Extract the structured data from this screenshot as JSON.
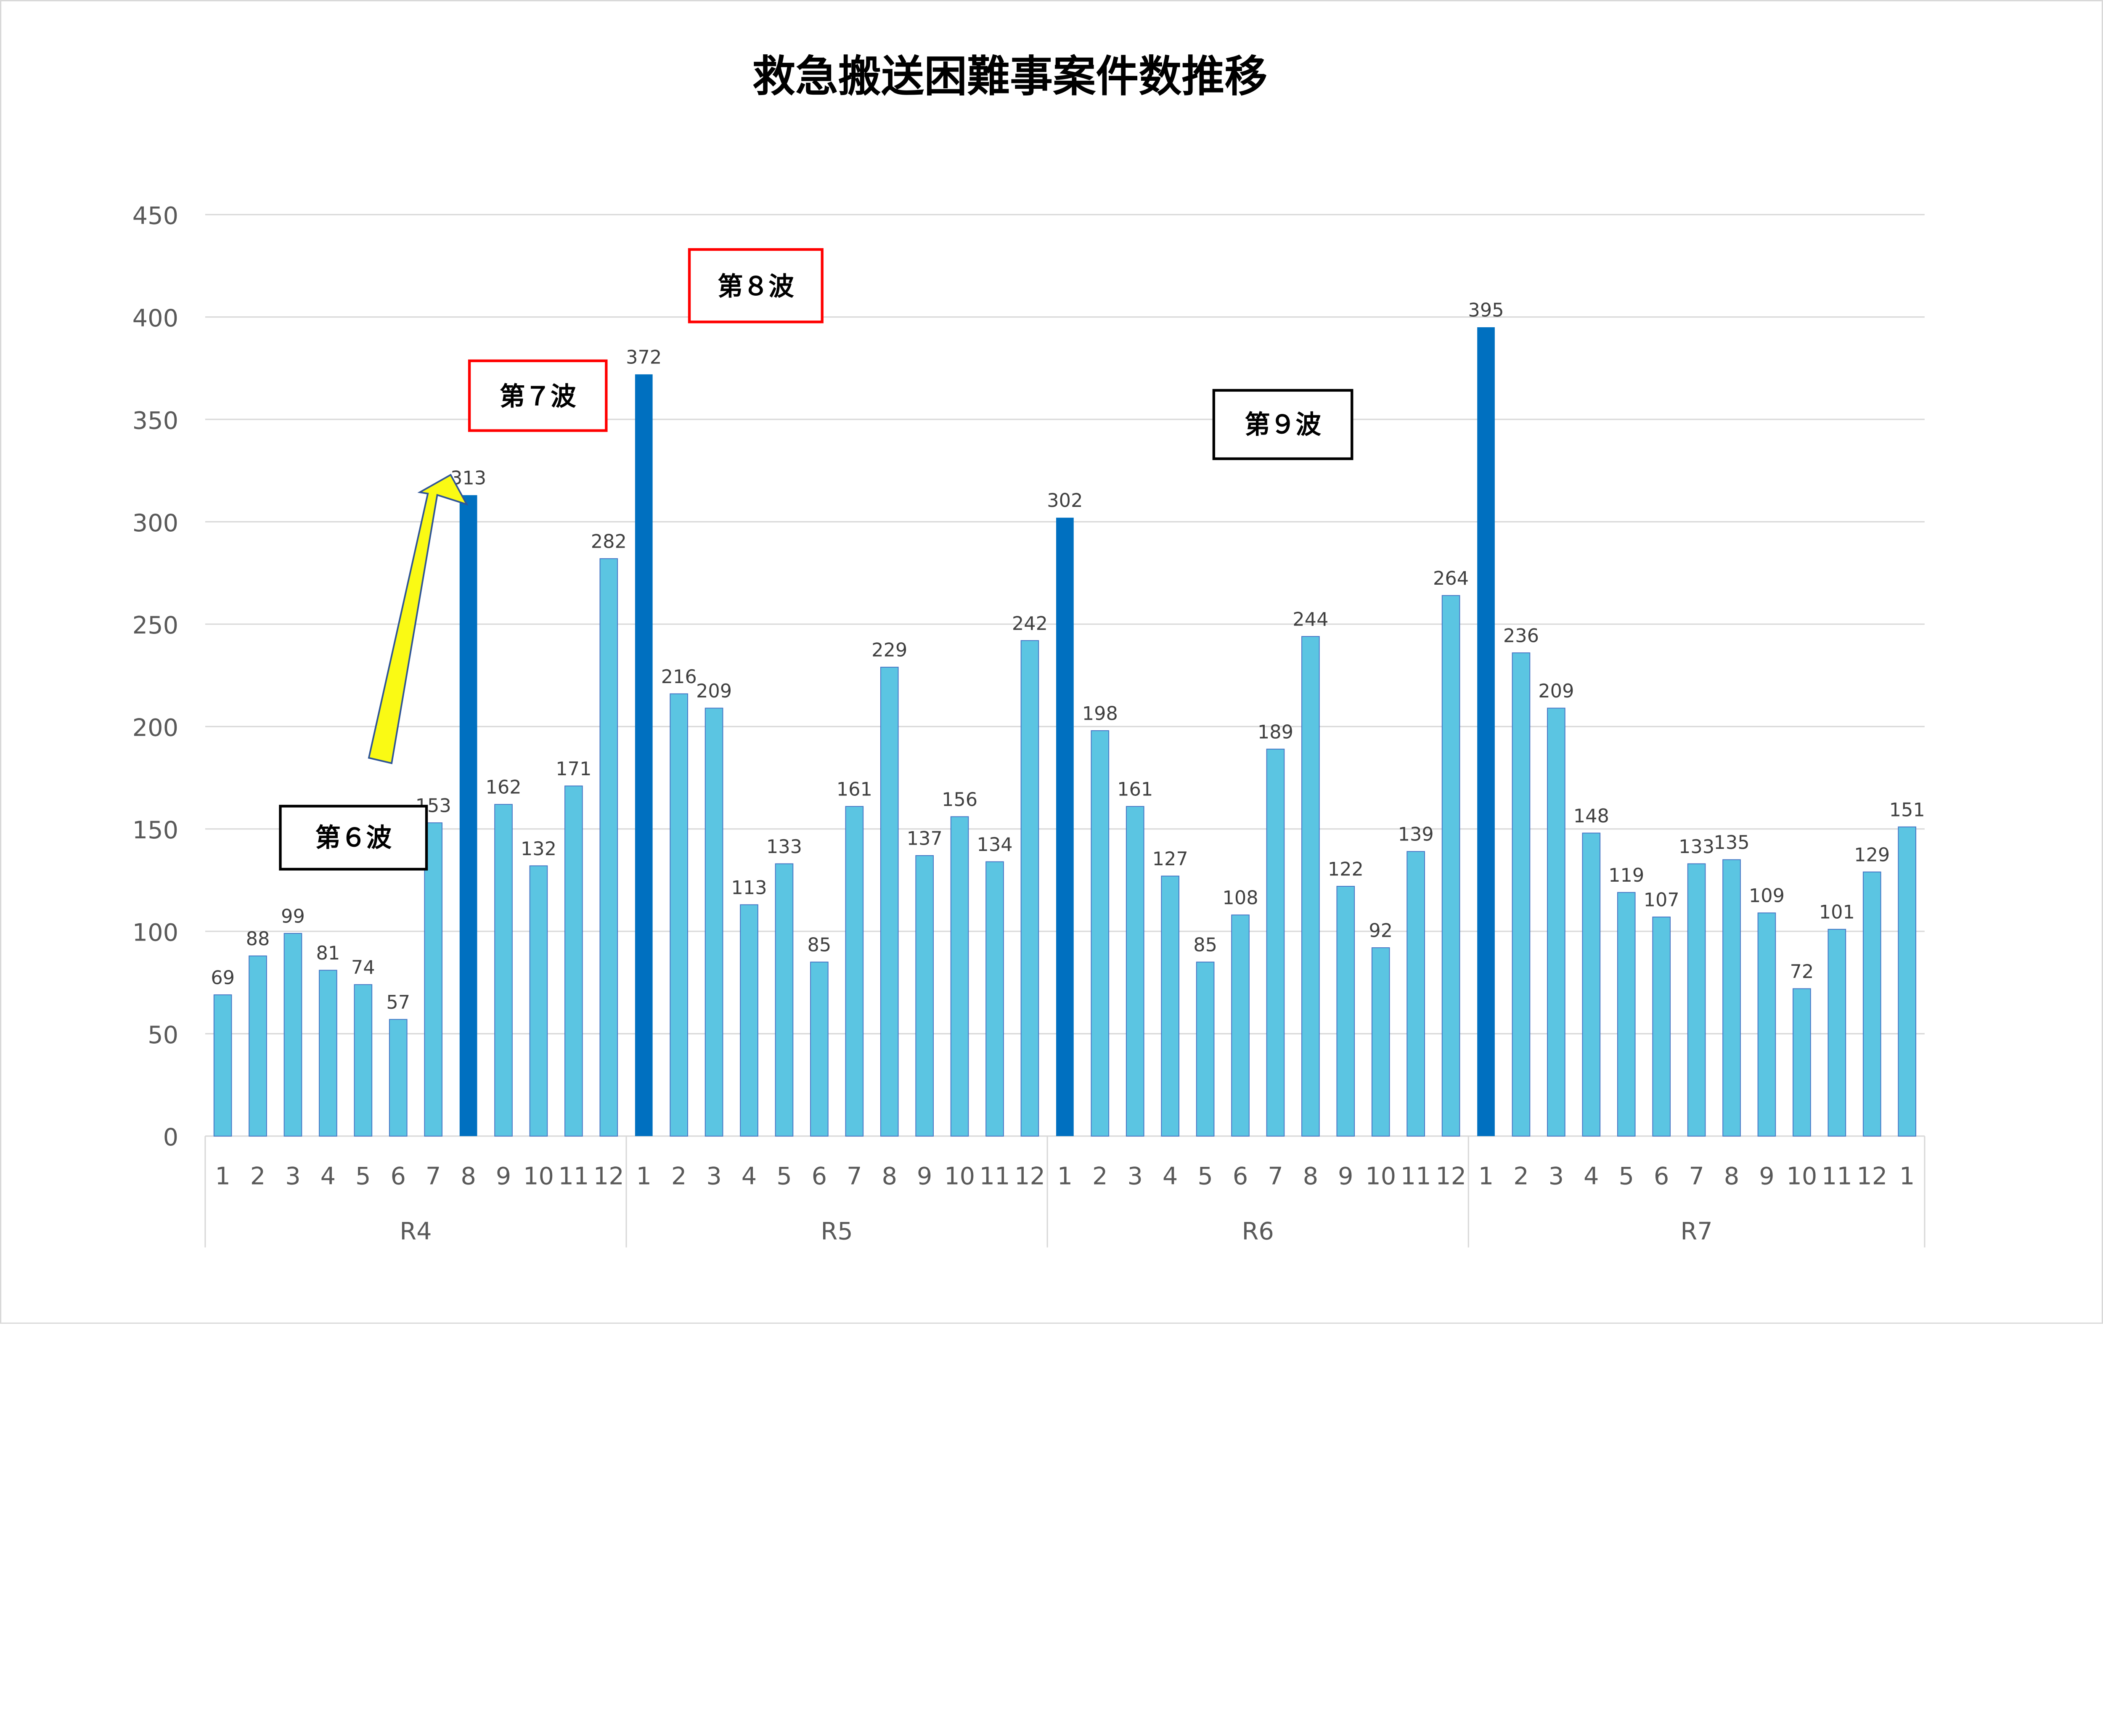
{
  "chart_data": {
    "type": "bar",
    "title": "救急搬送困難事案件数推移",
    "xlabel": "",
    "ylabel": "",
    "ylim": [
      0,
      450
    ],
    "yticks": [
      0,
      50,
      100,
      150,
      200,
      250,
      300,
      350,
      400,
      450
    ],
    "grid": true,
    "legend": "none",
    "groups": [
      {
        "label": "R4",
        "months": [
          "1",
          "2",
          "3",
          "4",
          "5",
          "6",
          "7",
          "8",
          "9",
          "10",
          "11",
          "12"
        ],
        "values": [
          69,
          88,
          99,
          81,
          74,
          57,
          153,
          313,
          162,
          132,
          171,
          282
        ]
      },
      {
        "label": "R5",
        "months": [
          "1",
          "2",
          "3",
          "4",
          "5",
          "6",
          "7",
          "8",
          "9",
          "10",
          "11",
          "12"
        ],
        "values": [
          372,
          216,
          209,
          113,
          133,
          85,
          161,
          229,
          137,
          156,
          134,
          242
        ]
      },
      {
        "label": "R6",
        "months": [
          "1",
          "2",
          "3",
          "4",
          "5",
          "6",
          "7",
          "8",
          "9",
          "10",
          "11",
          "12"
        ],
        "values": [
          302,
          198,
          161,
          127,
          85,
          108,
          189,
          244,
          122,
          92,
          139,
          264
        ]
      },
      {
        "label": "R7",
        "months": [
          "1",
          "2",
          "3",
          "4",
          "5",
          "6",
          "7",
          "8",
          "9",
          "10",
          "11",
          "12",
          "1"
        ],
        "values": [
          395,
          236,
          209,
          148,
          119,
          107,
          133,
          135,
          109,
          72,
          101,
          129,
          151
        ]
      }
    ],
    "highlighted_bars": [
      {
        "group": "R4",
        "month": "8"
      },
      {
        "group": "R5",
        "month": "1"
      },
      {
        "group": "R6",
        "month": "1"
      },
      {
        "group": "R7",
        "month": "1"
      }
    ],
    "colors": {
      "bar": "#5BC5E2",
      "bar_highlight": "#0070C0",
      "bar_outline": "#4472C4"
    },
    "annotations": [
      {
        "text": "第６波",
        "border": "#000000",
        "near": {
          "group": "R4",
          "month": "5"
        }
      },
      {
        "text": "第７波",
        "border": "#FF0000",
        "near": {
          "group": "R4",
          "month": "9"
        }
      },
      {
        "text": "第８波",
        "border": "#FF0000",
        "near": {
          "group": "R5",
          "month": "4"
        }
      },
      {
        "text": "第９波",
        "border": "#000000",
        "near": {
          "group": "R6",
          "month": "6"
        }
      }
    ],
    "arrow": {
      "color": "#FFFF00",
      "outline": "#2F5597",
      "points_to": {
        "group": "R4",
        "month": "8"
      }
    }
  }
}
